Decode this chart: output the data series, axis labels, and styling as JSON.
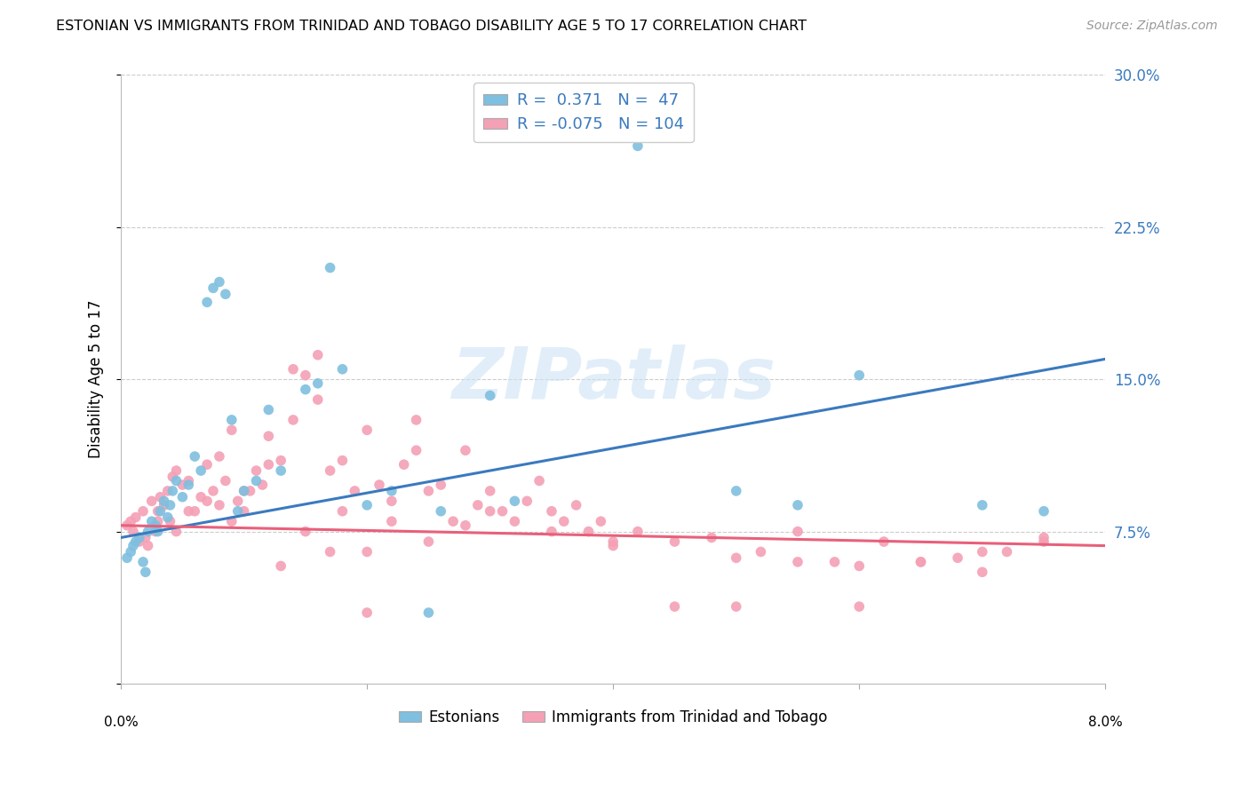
{
  "title": "ESTONIAN VS IMMIGRANTS FROM TRINIDAD AND TOBAGO DISABILITY AGE 5 TO 17 CORRELATION CHART",
  "source": "Source: ZipAtlas.com",
  "ylabel": "Disability Age 5 to 17",
  "xlim": [
    0.0,
    8.0
  ],
  "ylim": [
    0.0,
    30.0
  ],
  "yticks": [
    0.0,
    7.5,
    15.0,
    22.5,
    30.0
  ],
  "ytick_labels": [
    "",
    "7.5%",
    "15.0%",
    "22.5%",
    "30.0%"
  ],
  "blue_R": 0.371,
  "blue_N": 47,
  "pink_R": -0.075,
  "pink_N": 104,
  "blue_color": "#7fbfdf",
  "pink_color": "#f4a0b5",
  "blue_line_color": "#3a7abf",
  "pink_line_color": "#e8607a",
  "watermark": "ZIPatlas",
  "legend1_label": "Estonians",
  "legend2_label": "Immigrants from Trinidad and Tobago",
  "blue_line_x0": 0.0,
  "blue_line_y0": 7.2,
  "blue_line_x1": 8.0,
  "blue_line_y1": 16.0,
  "pink_line_x0": 0.0,
  "pink_line_y0": 7.8,
  "pink_line_x1": 8.0,
  "pink_line_y1": 6.8,
  "blue_x": [
    0.05,
    0.08,
    0.1,
    0.12,
    0.15,
    0.18,
    0.2,
    0.22,
    0.25,
    0.28,
    0.3,
    0.32,
    0.35,
    0.38,
    0.4,
    0.42,
    0.45,
    0.5,
    0.55,
    0.6,
    0.65,
    0.7,
    0.75,
    0.8,
    0.85,
    0.9,
    0.95,
    1.0,
    1.1,
    1.2,
    1.3,
    1.5,
    1.6,
    1.7,
    1.8,
    2.0,
    2.2,
    2.5,
    2.6,
    3.0,
    3.2,
    4.2,
    5.0,
    5.5,
    6.0,
    7.0,
    7.5
  ],
  "blue_y": [
    6.2,
    6.5,
    6.8,
    7.0,
    7.2,
    6.0,
    5.5,
    7.5,
    8.0,
    7.8,
    7.5,
    8.5,
    9.0,
    8.2,
    8.8,
    9.5,
    10.0,
    9.2,
    9.8,
    11.2,
    10.5,
    18.8,
    19.5,
    19.8,
    19.2,
    13.0,
    8.5,
    9.5,
    10.0,
    13.5,
    10.5,
    14.5,
    14.8,
    20.5,
    15.5,
    8.8,
    9.5,
    3.5,
    8.5,
    14.2,
    9.0,
    26.5,
    9.5,
    8.8,
    15.2,
    8.8,
    8.5
  ],
  "pink_x": [
    0.05,
    0.08,
    0.1,
    0.12,
    0.15,
    0.18,
    0.2,
    0.22,
    0.25,
    0.28,
    0.3,
    0.32,
    0.35,
    0.38,
    0.4,
    0.42,
    0.45,
    0.5,
    0.55,
    0.6,
    0.65,
    0.7,
    0.75,
    0.8,
    0.85,
    0.9,
    0.95,
    1.0,
    1.05,
    1.1,
    1.15,
    1.2,
    1.3,
    1.4,
    1.5,
    1.6,
    1.7,
    1.8,
    1.9,
    2.0,
    2.1,
    2.2,
    2.3,
    2.4,
    2.5,
    2.6,
    2.7,
    2.8,
    2.9,
    3.0,
    3.1,
    3.2,
    3.3,
    3.4,
    3.5,
    3.6,
    3.7,
    3.8,
    3.9,
    4.0,
    4.2,
    4.5,
    4.8,
    5.0,
    5.2,
    5.5,
    5.8,
    6.0,
    6.2,
    6.5,
    6.8,
    7.0,
    7.2,
    7.5,
    0.3,
    0.45,
    0.55,
    0.7,
    0.8,
    0.9,
    1.0,
    1.2,
    1.4,
    1.6,
    1.8,
    2.0,
    2.2,
    2.5,
    2.8,
    3.0,
    3.5,
    4.0,
    4.5,
    5.0,
    5.5,
    6.0,
    6.5,
    7.0,
    7.5,
    1.3,
    1.5,
    1.7,
    2.0,
    2.4
  ],
  "pink_y": [
    7.8,
    8.0,
    7.5,
    8.2,
    7.0,
    8.5,
    7.2,
    6.8,
    9.0,
    7.5,
    8.5,
    9.2,
    8.8,
    9.5,
    8.0,
    10.2,
    10.5,
    9.8,
    10.0,
    8.5,
    9.2,
    10.8,
    9.5,
    11.2,
    10.0,
    12.5,
    9.0,
    8.5,
    9.5,
    10.5,
    9.8,
    12.2,
    11.0,
    13.0,
    15.2,
    14.0,
    10.5,
    11.0,
    9.5,
    12.5,
    9.8,
    9.0,
    10.8,
    13.0,
    9.5,
    9.8,
    8.0,
    11.5,
    8.8,
    9.5,
    8.5,
    8.0,
    9.0,
    10.0,
    8.5,
    8.0,
    8.8,
    7.5,
    8.0,
    7.0,
    7.5,
    3.8,
    7.2,
    3.8,
    6.5,
    7.5,
    6.0,
    3.8,
    7.0,
    6.0,
    6.2,
    5.5,
    6.5,
    7.0,
    8.0,
    7.5,
    8.5,
    9.0,
    8.8,
    8.0,
    9.5,
    10.8,
    15.5,
    16.2,
    8.5,
    6.5,
    8.0,
    7.0,
    7.8,
    8.5,
    7.5,
    6.8,
    7.0,
    6.2,
    6.0,
    5.8,
    6.0,
    6.5,
    7.2,
    5.8,
    7.5,
    6.5,
    3.5,
    11.5
  ]
}
